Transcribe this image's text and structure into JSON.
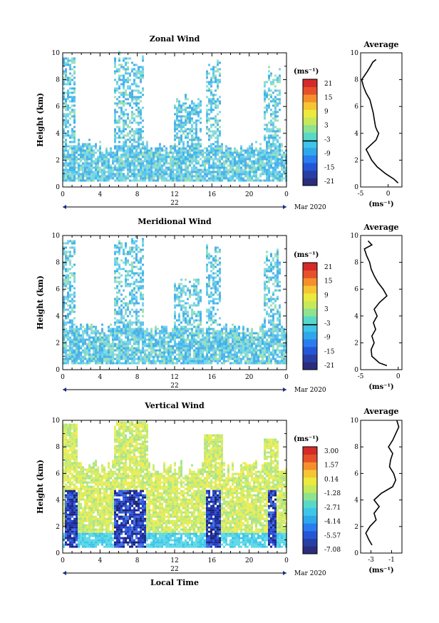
{
  "chart_data": [
    {
      "type": "heatmap",
      "title": "Zonal Wind",
      "ylabel": "Height (km)",
      "ylim": [
        0,
        10
      ],
      "x_ticks": [
        "0",
        "4",
        "8",
        "12",
        "16",
        "20",
        "0"
      ],
      "y_ticks": [
        "0",
        "2",
        "4",
        "6",
        "8",
        "10"
      ],
      "day_label": "22",
      "date_label": "Mar 2020",
      "colorbar": {
        "unit": "(ms⁻¹)",
        "ticks": [
          "-21",
          "-15",
          "-9",
          "-3",
          "3",
          "9",
          "15",
          "21"
        ],
        "contour_level": "0"
      },
      "profile": {
        "title": "Average",
        "xlabel": "(ms⁻¹)",
        "x_ticks": [
          "-5",
          "0"
        ],
        "xlim": [
          -5,
          2.5
        ],
        "y_ticks": [
          "0",
          "2",
          "4",
          "6",
          "8",
          "10"
        ],
        "heights": [
          0.3,
          0.6,
          1.0,
          1.5,
          2.0,
          2.5,
          2.8,
          3.0,
          3.5,
          4.0,
          4.2,
          4.5,
          5.0,
          5.5,
          6.0,
          6.5,
          7.0,
          7.5,
          8.0,
          8.3,
          8.6,
          9.0,
          9.3,
          9.5
        ],
        "values": [
          1.8,
          1.0,
          -0.5,
          -2.0,
          -3.0,
          -3.6,
          -4.0,
          -3.5,
          -2.2,
          -1.7,
          -2.0,
          -2.3,
          -2.5,
          -2.7,
          -3.0,
          -3.3,
          -4.0,
          -4.5,
          -4.8,
          -4.3,
          -3.8,
          -3.2,
          -2.8,
          -2.2
        ]
      }
    },
    {
      "type": "heatmap",
      "title": "Meridional Wind",
      "ylabel": "Height (km)",
      "ylim": [
        0,
        10
      ],
      "x_ticks": [
        "0",
        "4",
        "8",
        "12",
        "16",
        "20",
        "0"
      ],
      "y_ticks": [
        "0",
        "2",
        "4",
        "6",
        "8",
        "10"
      ],
      "day_label": "22",
      "date_label": "Mar 2020",
      "colorbar": {
        "unit": "(ms⁻¹)",
        "ticks": [
          "-21",
          "-15",
          "-9",
          "-3",
          "3",
          "9",
          "15",
          "21"
        ],
        "contour_level": "0"
      },
      "profile": {
        "title": "Average",
        "xlabel": "(ms⁻¹)",
        "x_ticks": [
          "-5",
          "0"
        ],
        "xlim": [
          -5,
          0.5
        ],
        "y_ticks": [
          "0",
          "2",
          "4",
          "6",
          "8",
          "10"
        ],
        "heights": [
          0.3,
          0.5,
          1.0,
          1.5,
          2.0,
          2.5,
          3.0,
          3.5,
          4.0,
          4.5,
          5.0,
          5.5,
          6.0,
          6.5,
          7.0,
          7.5,
          8.0,
          8.5,
          9.0,
          9.3,
          9.6
        ],
        "values": [
          -1.5,
          -2.5,
          -3.5,
          -3.6,
          -3.2,
          -3.5,
          -3.0,
          -3.3,
          -2.8,
          -3.2,
          -2.5,
          -1.5,
          -2.0,
          -2.7,
          -3.2,
          -3.6,
          -3.8,
          -4.2,
          -4.5,
          -3.5,
          -4.0
        ]
      }
    },
    {
      "type": "heatmap",
      "title": "Vertical Wind",
      "xlabel": "Local Time",
      "ylabel": "Height (km)",
      "ylim": [
        0,
        10
      ],
      "x_ticks": [
        "0",
        "4",
        "8",
        "12",
        "16",
        "20",
        "0"
      ],
      "y_ticks": [
        "0",
        "2",
        "4",
        "6",
        "8",
        "10"
      ],
      "day_label": "22",
      "date_label": "Mar 2020",
      "colorbar": {
        "unit": "(ms⁻¹)",
        "ticks": [
          "-7.08",
          "-5.57",
          "-4.14",
          "-2.71",
          "-1.28",
          "0.14",
          "1.57",
          "3.00"
        ]
      },
      "profile": {
        "title": "Average",
        "xlabel": "(ms⁻¹)",
        "x_ticks": [
          "-3",
          "-1"
        ],
        "xlim": [
          -4,
          0
        ],
        "y_ticks": [
          "0",
          "2",
          "4",
          "6",
          "8",
          "10"
        ],
        "heights": [
          0.6,
          1.0,
          1.5,
          2.0,
          2.5,
          3.0,
          3.5,
          4.0,
          4.5,
          5.0,
          5.5,
          6.0,
          6.5,
          7.0,
          7.5,
          8.0,
          8.5,
          9.0,
          9.5,
          10.0
        ],
        "values": [
          -2.9,
          -3.2,
          -3.5,
          -3.1,
          -2.5,
          -2.7,
          -2.2,
          -2.7,
          -2.0,
          -0.9,
          -0.6,
          -0.8,
          -1.2,
          -1.1,
          -0.9,
          -1.3,
          -0.9,
          -0.6,
          -0.3,
          -0.5
        ]
      }
    }
  ]
}
